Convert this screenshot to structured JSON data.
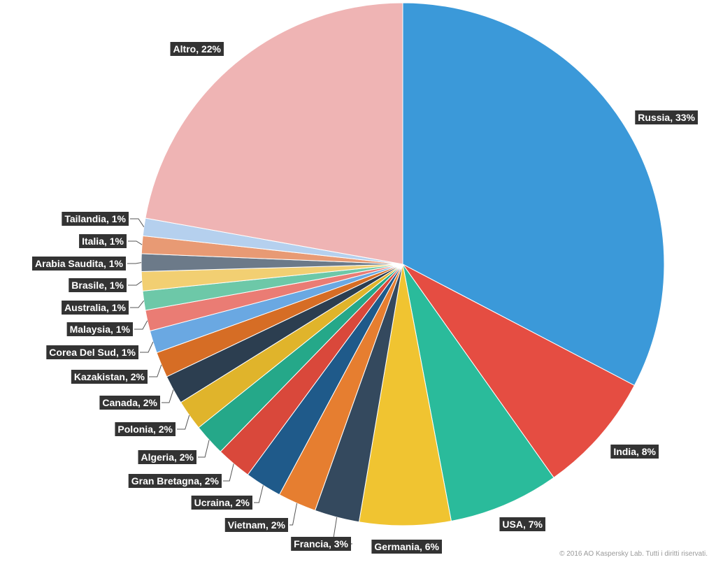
{
  "chart_data": {
    "type": "pie",
    "start_angle_deg": 0,
    "direction": "clockwise",
    "slices": [
      {
        "label": "Russia, 33%",
        "value": 33.0,
        "color": "#3b99d9"
      },
      {
        "label": "India, 8%",
        "value": 7.6,
        "color": "#e54d42"
      },
      {
        "label": "USA, 7%",
        "value": 6.9,
        "color": "#2abb9b"
      },
      {
        "label": "Germania, 6%",
        "value": 5.7,
        "color": "#f0c431"
      },
      {
        "label": "Francia, 3%",
        "value": 2.8,
        "color": "#34495e"
      },
      {
        "label": "Vietnam, 2%",
        "value": 2.4,
        "color": "#e67e30"
      },
      {
        "label": "Ucraina, 2%",
        "value": 2.3,
        "color": "#1f5a8a"
      },
      {
        "label": "Gran Bretagna, 2%",
        "value": 2.2,
        "color": "#d9483b"
      },
      {
        "label": "Algeria, 2%",
        "value": 2.0,
        "color": "#25a889"
      },
      {
        "label": "Polonia, 2%",
        "value": 1.9,
        "color": "#e0b42b"
      },
      {
        "label": "Canada, 2%",
        "value": 1.8,
        "color": "#2c3e50"
      },
      {
        "label": "Kazakistan, 2%",
        "value": 1.6,
        "color": "#d66d25"
      },
      {
        "label": "Corea Del Sud, 1%",
        "value": 1.4,
        "color": "#6aa8e2"
      },
      {
        "label": "Malaysia, 1%",
        "value": 1.3,
        "color": "#ea7c74"
      },
      {
        "label": "Australia, 1%",
        "value": 1.2,
        "color": "#6dc8a8"
      },
      {
        "label": "Brasile, 1%",
        "value": 1.2,
        "color": "#f2cf72"
      },
      {
        "label": "Arabia Saudita, 1%",
        "value": 1.1,
        "color": "#6c7a89"
      },
      {
        "label": "Italia, 1%",
        "value": 1.1,
        "color": "#e89a74"
      },
      {
        "label": "Tailandia, 1%",
        "value": 1.1,
        "color": "#b5d0ee"
      },
      {
        "label": "Altro, 22%",
        "value": 22.4,
        "color": "#efb4b4"
      }
    ]
  },
  "footer": {
    "copyright": "© 2016 AO Kaspersky Lab. Tutti i diritti riservati."
  }
}
